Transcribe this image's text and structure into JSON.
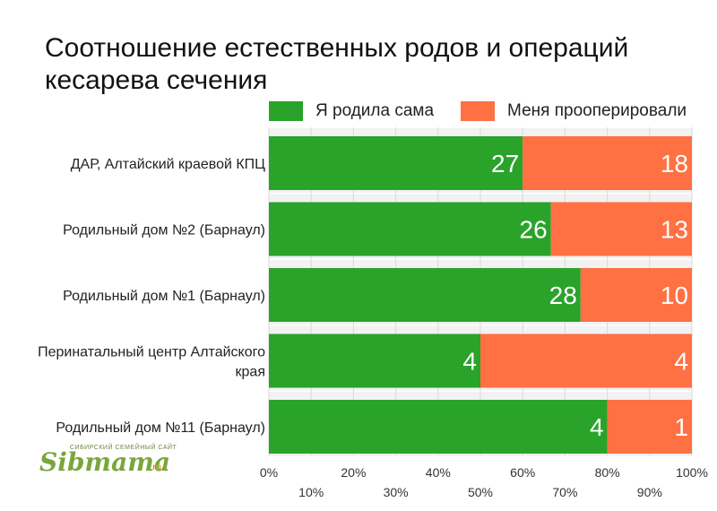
{
  "title": "Соотношение естественных родов и операций кесарева сечения",
  "colors": {
    "natural": "#2aa32a",
    "cesarean": "#ff7043",
    "grid": "#d9d9d9",
    "band": "#f2f2f2"
  },
  "logo": {
    "main": "Sibmama",
    "small": "СИБИРСКИЙ СЕМЕЙНЫЙ САЙТ",
    "suffix": "ru"
  },
  "chart_data": {
    "type": "bar",
    "orientation": "horizontal",
    "stacked": "percent",
    "title": "Соотношение естественных родов и операций кесарева сечения",
    "categories": [
      "ДАР, Алтайский краевой КПЦ",
      "Родильный дом №2 (Барнаул)",
      "Родильный дом №1 (Барнаул)",
      "Перинатальный центр Алтайского края",
      "Родильный дом №11 (Барнаул)"
    ],
    "series": [
      {
        "name": "Я родила сама",
        "values": [
          27,
          26,
          28,
          4,
          4
        ]
      },
      {
        "name": "Меня прооперировали",
        "values": [
          18,
          13,
          10,
          4,
          1
        ]
      }
    ],
    "x_ticks": [
      "0%",
      "10%",
      "20%",
      "30%",
      "40%",
      "50%",
      "60%",
      "70%",
      "80%",
      "90%",
      "100%"
    ],
    "xlim": [
      0,
      100
    ],
    "legend": "top",
    "grid": true
  }
}
